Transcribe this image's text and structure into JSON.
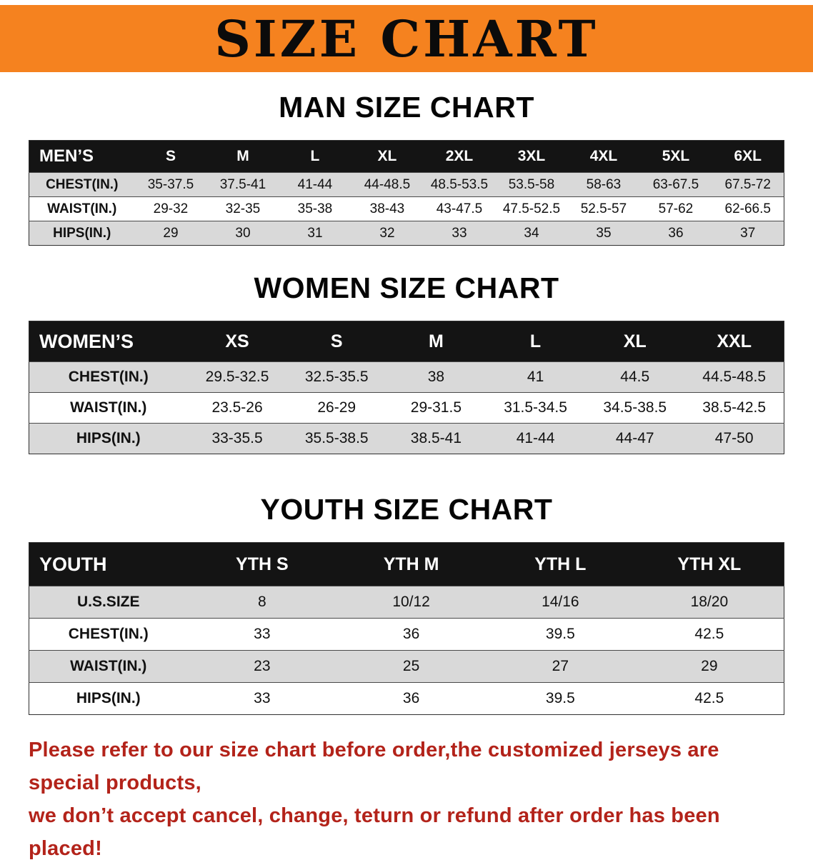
{
  "banner": {
    "title": "SIZE CHART"
  },
  "tables": [
    {
      "heading": "MAN SIZE CHART",
      "header_label": "MEN’S",
      "columns": [
        "S",
        "M",
        "L",
        "XL",
        "2XL",
        "3XL",
        "4XL",
        "5XL",
        "6XL"
      ],
      "rows": [
        {
          "label": "CHEST(IN.)",
          "values": [
            "35-37.5",
            "37.5-41",
            "41-44",
            "44-48.5",
            "48.5-53.5",
            "53.5-58",
            "58-63",
            "63-67.5",
            "67.5-72"
          ]
        },
        {
          "label": "WAIST(IN.)",
          "values": [
            "29-32",
            "32-35",
            "35-38",
            "38-43",
            "43-47.5",
            "47.5-52.5",
            "52.5-57",
            "57-62",
            "62-66.5"
          ]
        },
        {
          "label": "HIPS(IN.)",
          "values": [
            "29",
            "30",
            "31",
            "32",
            "33",
            "34",
            "35",
            "36",
            "37"
          ]
        }
      ]
    },
    {
      "heading": "WOMEN SIZE CHART",
      "header_label": "WOMEN’S",
      "columns": [
        "XS",
        "S",
        "M",
        "L",
        "XL",
        "XXL"
      ],
      "rows": [
        {
          "label": "CHEST(IN.)",
          "values": [
            "29.5-32.5",
            "32.5-35.5",
            "38",
            "41",
            "44.5",
            "44.5-48.5"
          ]
        },
        {
          "label": "WAIST(IN.)",
          "values": [
            "23.5-26",
            "26-29",
            "29-31.5",
            "31.5-34.5",
            "34.5-38.5",
            "38.5-42.5"
          ]
        },
        {
          "label": "HIPS(IN.)",
          "values": [
            "33-35.5",
            "35.5-38.5",
            "38.5-41",
            "41-44",
            "44-47",
            "47-50"
          ]
        }
      ]
    },
    {
      "heading": "YOUTH SIZE CHART",
      "header_label": "YOUTH",
      "columns": [
        "YTH S",
        "YTH M",
        "YTH L",
        "YTH XL"
      ],
      "rows": [
        {
          "label": "U.S.SIZE",
          "values": [
            "8",
            "10/12",
            "14/16",
            "18/20"
          ]
        },
        {
          "label": "CHEST(IN.)",
          "values": [
            "33",
            "36",
            "39.5",
            "42.5"
          ]
        },
        {
          "label": "WAIST(IN.)",
          "values": [
            "23",
            "25",
            "27",
            "29"
          ]
        },
        {
          "label": "HIPS(IN.)",
          "values": [
            "33",
            "36",
            "39.5",
            "42.5"
          ]
        }
      ]
    }
  ],
  "footer": {
    "line1": "Please refer to our size chart before order,the customized jerseys are special products,",
    "line2": "we don’t accept cancel, change, teturn or refund after order has been placed!"
  },
  "colors": {
    "banner-orange": "#F5821F",
    "header-black": "#141414",
    "row-shade": "#D9D9D9",
    "disclaimer-red": "#B3231A"
  }
}
